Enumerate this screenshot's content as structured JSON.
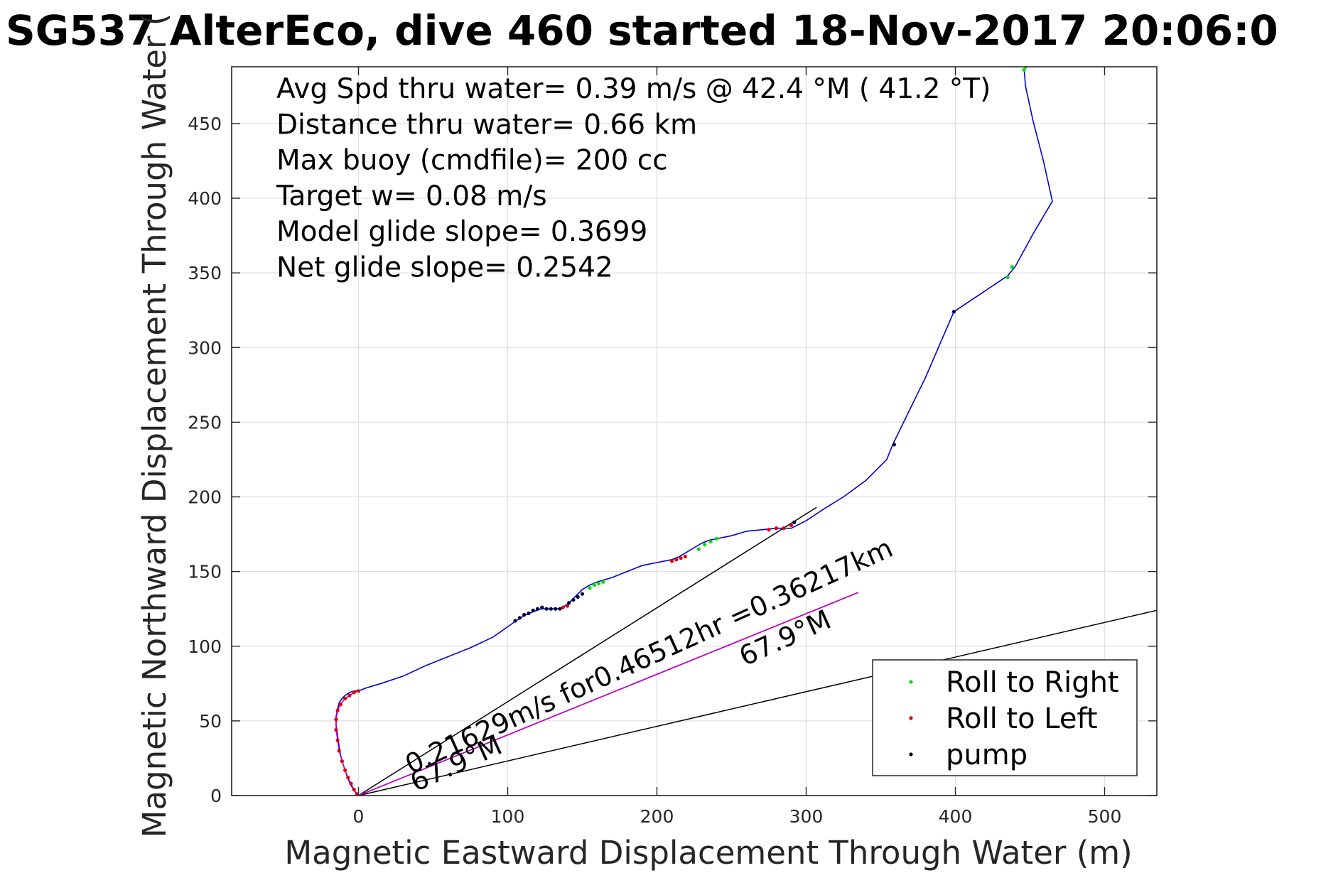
{
  "chart_data": {
    "type": "line",
    "title": "SG537 AlterEco, dive 460 started 18-Nov-2017 20:06:0",
    "xlabel": "Magnetic Eastward Displacement Through Water (m)",
    "ylabel": "Magnetic Northward Displacement Through Water (",
    "xlim": [
      -85,
      535
    ],
    "ylim": [
      0,
      488
    ],
    "x_ticks": [
      0,
      100,
      200,
      300,
      400,
      500
    ],
    "y_ticks": [
      0,
      50,
      100,
      150,
      200,
      250,
      300,
      350,
      400,
      450
    ],
    "grid": true,
    "legend_position": "bottom-right",
    "colors": {
      "track": "#0000d0",
      "roll_right": "#00e000",
      "roll_left": "#e00000",
      "pump": "#000040",
      "current_line": "#c000c0",
      "reference_lines": "#000000"
    },
    "stats": [
      "Avg Spd thru water=  0.39 m/s @  42.4 °M ( 41.2 °T)",
      "Distance thru water=  0.66 km",
      "Max buoy (cmdfile)= 200 cc",
      "Target w= 0.08 m/s",
      "Model glide slope= 0.3699",
      "Net glide slope= 0.2542"
    ],
    "annotations": {
      "current_text": "0.21629m/s for0.46512hr =0.36217km",
      "heading_upper": "67.9°M",
      "heading_lower": "67.9°M"
    },
    "legend": [
      {
        "label": "Roll to Right",
        "series": "roll_right"
      },
      {
        "label": "Roll to Left",
        "series": "roll_left"
      },
      {
        "label": "pump",
        "series": "pump"
      }
    ],
    "track": {
      "x": [
        0,
        -2,
        -4,
        -6,
        -8,
        -10,
        -12,
        -13,
        -14,
        -15,
        -15,
        -14,
        -13,
        -11,
        -9,
        -6,
        -3,
        0,
        5,
        15,
        30,
        45,
        60,
        75,
        90,
        100,
        107,
        112,
        117,
        122,
        128,
        133,
        137,
        141,
        145,
        150,
        155,
        160,
        170,
        180,
        190,
        200,
        210,
        215,
        220,
        225,
        230,
        235,
        240,
        245,
        250,
        260,
        270,
        280,
        290,
        300,
        312,
        325,
        340,
        354,
        358,
        380,
        399,
        420,
        435,
        440,
        452,
        465,
        459,
        452,
        447,
        446
      ],
      "y": [
        0,
        2,
        5,
        9,
        14,
        20,
        27,
        33,
        40,
        47,
        53,
        58,
        62,
        65,
        67,
        69,
        70,
        70,
        72,
        75,
        80,
        87,
        93,
        99,
        106,
        113,
        118,
        121,
        123,
        125,
        125,
        125,
        126,
        129,
        133,
        138,
        141,
        143,
        146,
        150,
        154,
        156,
        158,
        160,
        163,
        166,
        169,
        171,
        172,
        173,
        174,
        177,
        178,
        179,
        179,
        184,
        192,
        200,
        211,
        225,
        235,
        280,
        324,
        338,
        348,
        354,
        376,
        398,
        425,
        452,
        475,
        487
      ]
    },
    "roll_right": {
      "x": [
        155,
        158,
        161,
        164,
        228,
        232,
        236,
        240,
        435,
        438,
        446,
        447
      ],
      "y": [
        139,
        141,
        142,
        143,
        165,
        168,
        170,
        172,
        347,
        354,
        486,
        488
      ]
    },
    "roll_left": {
      "x": [
        -1,
        -3,
        -5,
        -7,
        -9,
        -11,
        -13,
        -14,
        -15,
        -15,
        -14,
        -12,
        -9,
        -6,
        -3,
        0,
        137,
        140,
        210,
        213,
        216,
        219,
        275,
        280,
        285,
        290
      ],
      "y": [
        1,
        4,
        8,
        12,
        17,
        23,
        30,
        37,
        44,
        51,
        57,
        61,
        65,
        67,
        69,
        70,
        126,
        127,
        157,
        158,
        159,
        160,
        178,
        179,
        179,
        181
      ],
      "connected": true
    },
    "pump": {
      "x": [
        105,
        108,
        111,
        114,
        117,
        120,
        123,
        126,
        129,
        132,
        135,
        141,
        144,
        147,
        150,
        359,
        399,
        292
      ],
      "y": [
        117,
        119,
        121,
        122,
        124,
        125,
        126,
        125,
        125,
        125,
        125,
        129,
        131,
        133,
        135,
        235,
        324,
        183
      ]
    },
    "reference_lines": [
      {
        "x": [
          0,
          307
        ],
        "y": [
          0,
          193
        ]
      },
      {
        "x": [
          0,
          1100
        ],
        "y": [
          0,
          255
        ]
      }
    ],
    "current_line": {
      "x": [
        0,
        335
      ],
      "y": [
        0,
        136
      ]
    }
  }
}
